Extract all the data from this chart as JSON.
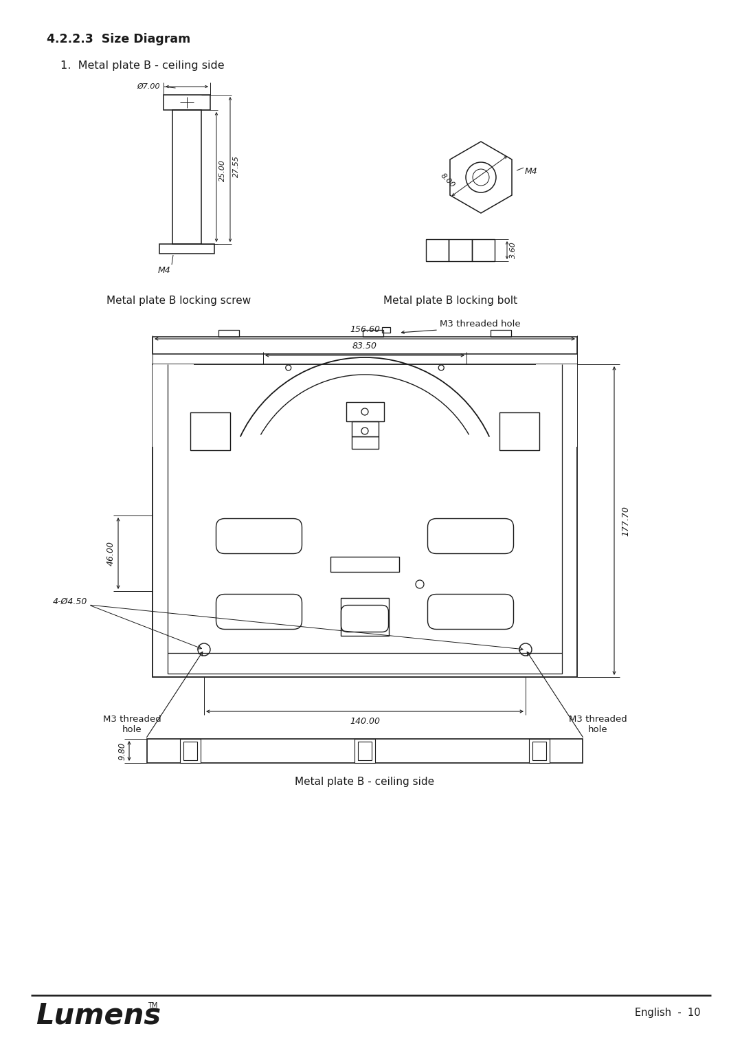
{
  "title": "4.2.2.3  Size Diagram",
  "subtitle": "1.  Metal plate B - ceiling side",
  "bg_color": "#ffffff",
  "text_color": "#1a1a1a",
  "line_color": "#1a1a1a",
  "page_label": "English  -  10",
  "screw_label": "Metal plate B locking screw",
  "bolt_label": "Metal plate B locking bolt",
  "dim_phi7": "Ø7.00",
  "dim_25": "25.00",
  "dim_2755": "27.55",
  "dim_m4": "M4",
  "dim_8": "8.00",
  "dim_m4bolt": "M4",
  "dim_360": "3.60",
  "dim_15660": "156.60",
  "dim_8350": "83.50",
  "dim_14000": "140.00",
  "dim_4600": "46.00",
  "dim_17770": "177.70",
  "dim_4phi450": "4-Ø4.50",
  "dim_980": "9.80",
  "label_m3_top": "M3 threaded hole",
  "label_m3_bottom_left": "M3 threaded\nhole",
  "label_m3_bottom_right": "M3 threaded\nhole",
  "label_ceiling_side": "Metal plate B - ceiling side"
}
